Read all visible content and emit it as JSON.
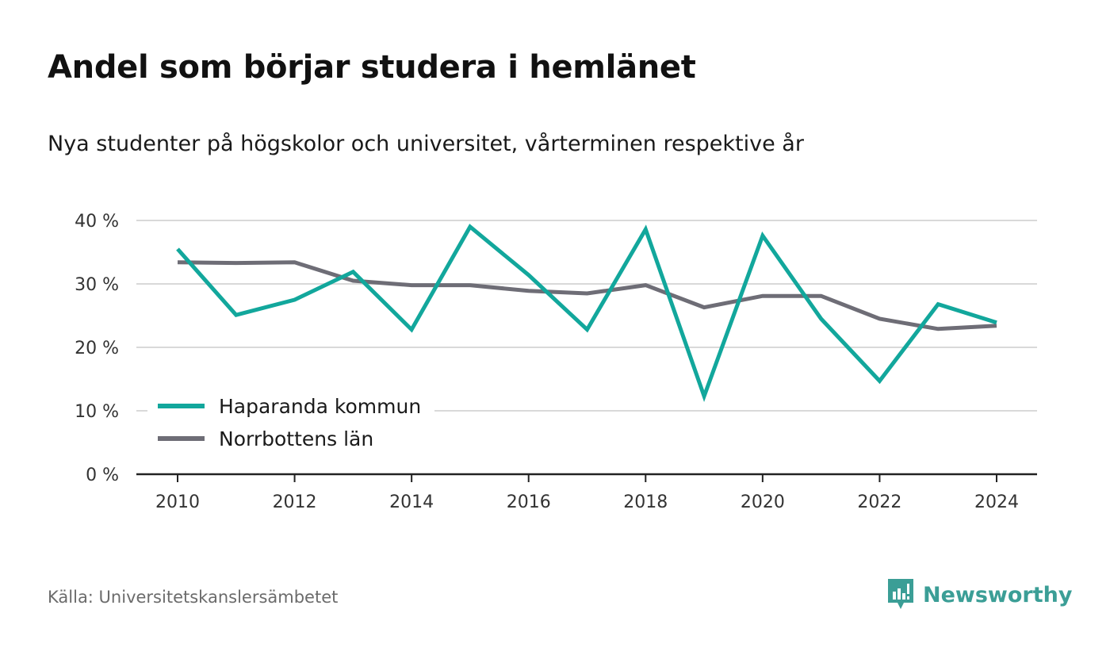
{
  "header": {
    "title": "Andel som börjar studera i hemlänet",
    "subtitle": "Nya studenter på högskolor och universitet, vårterminen respektive år"
  },
  "footer": {
    "source": "Källa: Universitetskanslersämbetet",
    "brand": "Newsworthy"
  },
  "colors": {
    "haparanda": "#12a79c",
    "norrbotten": "#6e6d76",
    "grid": "#d9d9d9",
    "axis": "#222222",
    "brand": "#3b9e96"
  },
  "chart_data": {
    "type": "line",
    "x": [
      2010,
      2011,
      2012,
      2013,
      2014,
      2015,
      2016,
      2017,
      2018,
      2019,
      2020,
      2021,
      2022,
      2023,
      2024
    ],
    "series": [
      {
        "name": "Haparanda kommun",
        "values": [
          35.5,
          25.1,
          27.5,
          31.9,
          22.8,
          39.0,
          31.4,
          22.8,
          38.6,
          12.3,
          37.6,
          24.5,
          14.7,
          26.8,
          23.9
        ]
      },
      {
        "name": "Norrbottens län",
        "values": [
          33.4,
          33.3,
          33.4,
          30.5,
          29.8,
          29.8,
          28.9,
          28.5,
          29.8,
          26.3,
          28.1,
          28.1,
          24.5,
          22.9,
          23.4
        ]
      }
    ],
    "ylim": [
      0,
      40
    ],
    "yticks": [
      0,
      10,
      20,
      30,
      40
    ],
    "ytick_labels": [
      "0 %",
      "10 %",
      "20 %",
      "30 %",
      "40 %"
    ],
    "xticks": [
      2010,
      2012,
      2014,
      2016,
      2018,
      2020,
      2022,
      2024
    ],
    "xtick_labels": [
      "2010",
      "2012",
      "2014",
      "2016",
      "2018",
      "2020",
      "2022",
      "2024"
    ],
    "grid": true,
    "legend_position": "bottom-left"
  }
}
